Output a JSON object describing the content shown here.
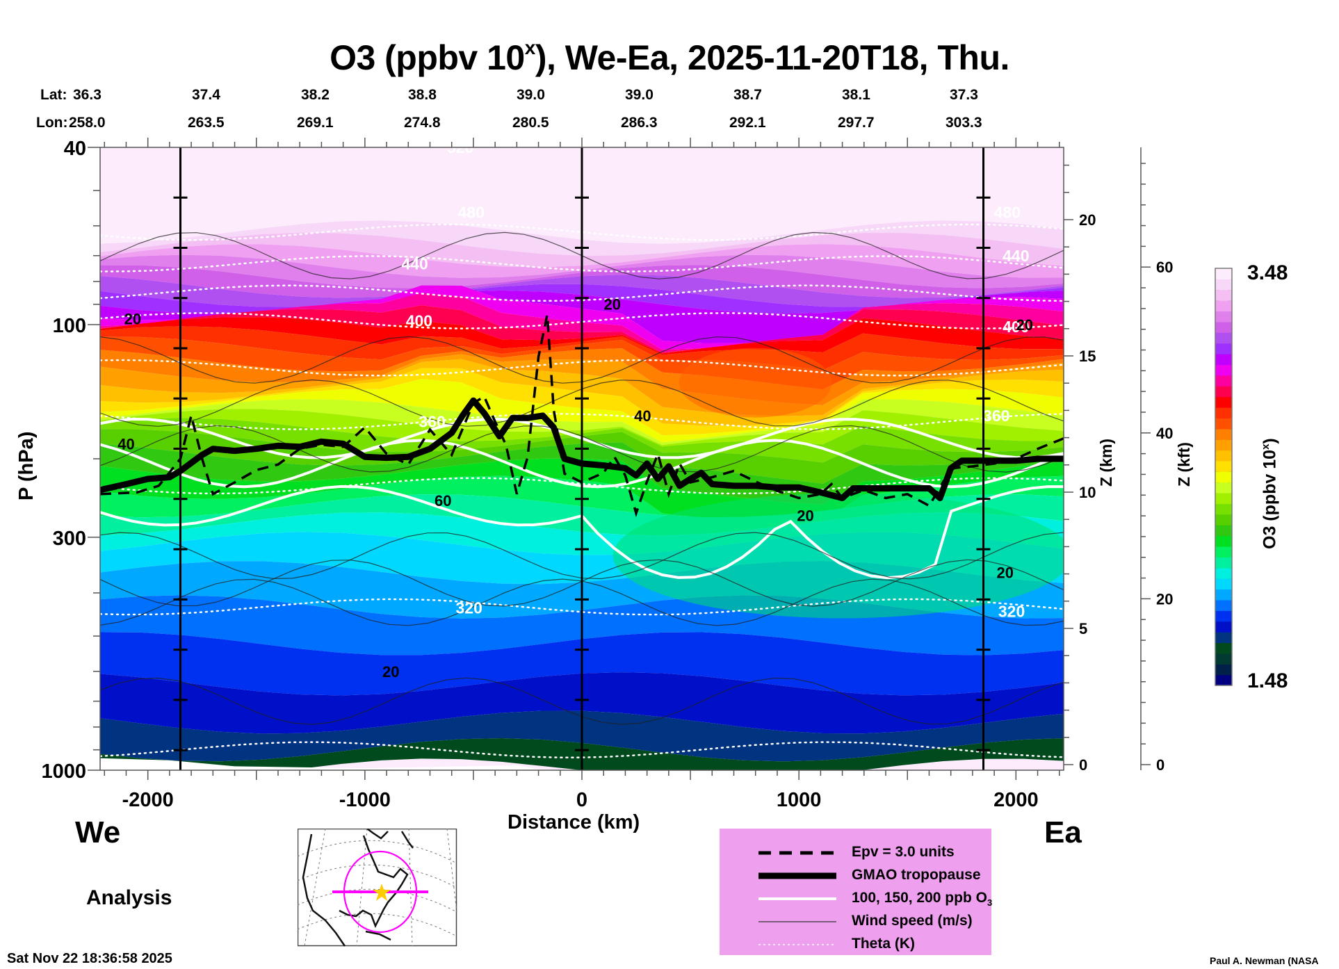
{
  "chart_data": {
    "type": "heatmap",
    "title_main": "O3 (ppbv 10",
    "title_sup": "x",
    "title_rest": "), We-Ea, 2025-11-20T18, Thu.",
    "xlabel": "Distance (km)",
    "ylabel": "P (hPa)",
    "ylabel_right_km": "Z (km)",
    "ylabel_right_kft": "Z (kft)",
    "xlim": [
      -2220,
      2220
    ],
    "ylim_hpa": [
      1000,
      40
    ],
    "x_ticks": [
      -2000,
      -1000,
      0,
      1000,
      2000
    ],
    "x_tick_labels": [
      "-2000",
      "-1000",
      "0",
      "1000",
      "2000"
    ],
    "y_ticks": [
      40,
      100,
      300,
      1000
    ],
    "y_tick_labels": [
      "40",
      "100",
      "300",
      "1000"
    ],
    "z_km_ticks": [
      "0",
      "5",
      "10",
      "15",
      "20"
    ],
    "z_km_values": [
      0,
      5,
      10,
      15,
      20
    ],
    "z_kft_ticks": [
      "0",
      "20",
      "40",
      "60"
    ],
    "z_kft_values": [
      0,
      20,
      40,
      60
    ],
    "lat_label": "Lat:",
    "lon_label": "Lon:",
    "lat": [
      "36.3",
      "37.4",
      "38.2",
      "38.8",
      "39.0",
      "39.0",
      "38.7",
      "38.1",
      "37.3"
    ],
    "lon": [
      "258.0",
      "263.5",
      "269.1",
      "274.8",
      "280.5",
      "286.3",
      "292.1",
      "297.7",
      "303.3"
    ],
    "vertical_markers_km": [
      -1850,
      0,
      1850
    ],
    "colorbar": {
      "label_main": "O3 (ppbv 10",
      "label_sup": "x",
      "label_end": ")",
      "min_label": "1.48",
      "max_label": "3.48",
      "min": 1.48,
      "max": 3.48,
      "colors": [
        "#000080",
        "#00204a",
        "#003a30",
        "#004a1e",
        "#003380",
        "#0010c8",
        "#0030f0",
        "#0070ff",
        "#00a8ff",
        "#00d8ff",
        "#00f0e0",
        "#00f0a0",
        "#00f060",
        "#00e020",
        "#30c810",
        "#58d000",
        "#78e000",
        "#a0f000",
        "#c8ff20",
        "#f0ff00",
        "#ffe000",
        "#ffc000",
        "#ffa000",
        "#ff8000",
        "#ff5000",
        "#ff3000",
        "#ff0000",
        "#ff0050",
        "#ff00a0",
        "#f000f0",
        "#c000ff",
        "#a030ff",
        "#b050f0",
        "#d060e8",
        "#e080ec",
        "#f0a0f0",
        "#f4c0f4",
        "#f8d8f8",
        "#fcecfc"
      ]
    },
    "theta_labels": [
      {
        "text": "520",
        "x_km": -560,
        "p": 40
      },
      {
        "text": "480",
        "x_km": -510,
        "p": 56
      },
      {
        "text": "480",
        "x_km": 1960,
        "p": 56
      },
      {
        "text": "440",
        "x_km": -770,
        "p": 73
      },
      {
        "text": "440",
        "x_km": 2000,
        "p": 70
      },
      {
        "text": "400",
        "x_km": -750,
        "p": 98
      },
      {
        "text": "400",
        "x_km": 2000,
        "p": 101
      },
      {
        "text": "360",
        "x_km": -690,
        "p": 165
      },
      {
        "text": "360",
        "x_km": 1910,
        "p": 160
      },
      {
        "text": "320",
        "x_km": -520,
        "p": 432
      },
      {
        "text": "320",
        "x_km": 1980,
        "p": 440
      }
    ],
    "wind_labels": [
      {
        "text": "20",
        "x_km": -2070,
        "p": 97
      },
      {
        "text": "40",
        "x_km": -2100,
        "p": 185
      },
      {
        "text": "60",
        "x_km": -640,
        "p": 248
      },
      {
        "text": "20",
        "x_km": -880,
        "p": 600
      },
      {
        "text": "20",
        "x_km": 140,
        "p": 90
      },
      {
        "text": "40",
        "x_km": 280,
        "p": 160
      },
      {
        "text": "20",
        "x_km": 1030,
        "p": 268
      },
      {
        "text": "20",
        "x_km": 1950,
        "p": 360
      },
      {
        "text": "20",
        "x_km": 2040,
        "p": 100
      }
    ],
    "tropopause": {
      "x_km": [
        -2220,
        -2100,
        -2000,
        -1900,
        -1850,
        -1750,
        -1700,
        -1600,
        -1500,
        -1400,
        -1300,
        -1200,
        -1100,
        -1000,
        -900,
        -800,
        -700,
        -600,
        -550,
        -500,
        -450,
        -380,
        -320,
        -250,
        -180,
        -130,
        -80,
        0,
        100,
        200,
        250,
        300,
        350,
        400,
        450,
        500,
        550,
        600,
        700,
        800,
        900,
        1000,
        1100,
        1200,
        1250,
        1300,
        1400,
        1500,
        1600,
        1650,
        1700,
        1750,
        1800,
        1900,
        2000,
        2100,
        2220
      ],
      "p_hpa": [
        235,
        228,
        222,
        220,
        213,
        196,
        190,
        192,
        190,
        187,
        188,
        183,
        185,
        198,
        199,
        198,
        190,
        175,
        160,
        148,
        158,
        178,
        162,
        162,
        160,
        170,
        200,
        205,
        207,
        210,
        218,
        205,
        222,
        208,
        230,
        222,
        215,
        228,
        230,
        230,
        232,
        232,
        238,
        245,
        233,
        233,
        233,
        233,
        233,
        245,
        210,
        202,
        202,
        202,
        202,
        200,
        200
      ]
    },
    "epv_dash": {
      "x_km": [
        -2220,
        -2050,
        -1950,
        -1850,
        -1800,
        -1750,
        -1700,
        -1600,
        -1500,
        -1400,
        -1300,
        -1200,
        -1100,
        -1000,
        -900,
        -800,
        -700,
        -600,
        -500,
        -450,
        -400,
        -350,
        -300,
        -250,
        -200,
        -160,
        -130,
        -80,
        0,
        100,
        150,
        200,
        250,
        300,
        350,
        400,
        450,
        500,
        600,
        700,
        800,
        900,
        1000,
        1100,
        1150,
        1200,
        1300,
        1400,
        1500,
        1600,
        1650,
        1700,
        1800,
        1900,
        2000,
        2100,
        2220
      ],
      "p_hpa": [
        240,
        238,
        230,
        200,
        160,
        200,
        240,
        226,
        212,
        206,
        190,
        186,
        188,
        170,
        195,
        206,
        172,
        196,
        150,
        145,
        165,
        186,
        240,
        198,
        118,
        95,
        155,
        216,
        226,
        215,
        198,
        218,
        265,
        225,
        195,
        240,
        205,
        226,
        220,
        213,
        225,
        236,
        245,
        240,
        228,
        245,
        235,
        245,
        240,
        255,
        232,
        210,
        208,
        205,
        200,
        190,
        180
      ]
    },
    "legend": {
      "items": [
        {
          "label": "Epv = 3.0 units",
          "style": "dashed-black"
        },
        {
          "label": "GMAO tropopause",
          "style": "thick-black"
        },
        {
          "label": "100, 150, 200 ppb O",
          "sub": "3",
          "style": "white"
        },
        {
          "label": "Wind speed (m/s)",
          "style": "thin-black"
        },
        {
          "label": "Theta (K)",
          "style": "dotted-white"
        }
      ]
    }
  },
  "labels": {
    "west": "We",
    "east": "Ea",
    "analysis": "Analysis",
    "timestamp": "Sat Nov 22 18:36:58 2025",
    "credit": "Paul A. Newman (NASA"
  },
  "colors": {
    "legend_bg": "#ee9fee",
    "map_track": "#ff00ff",
    "map_star": "#ffcc00"
  }
}
